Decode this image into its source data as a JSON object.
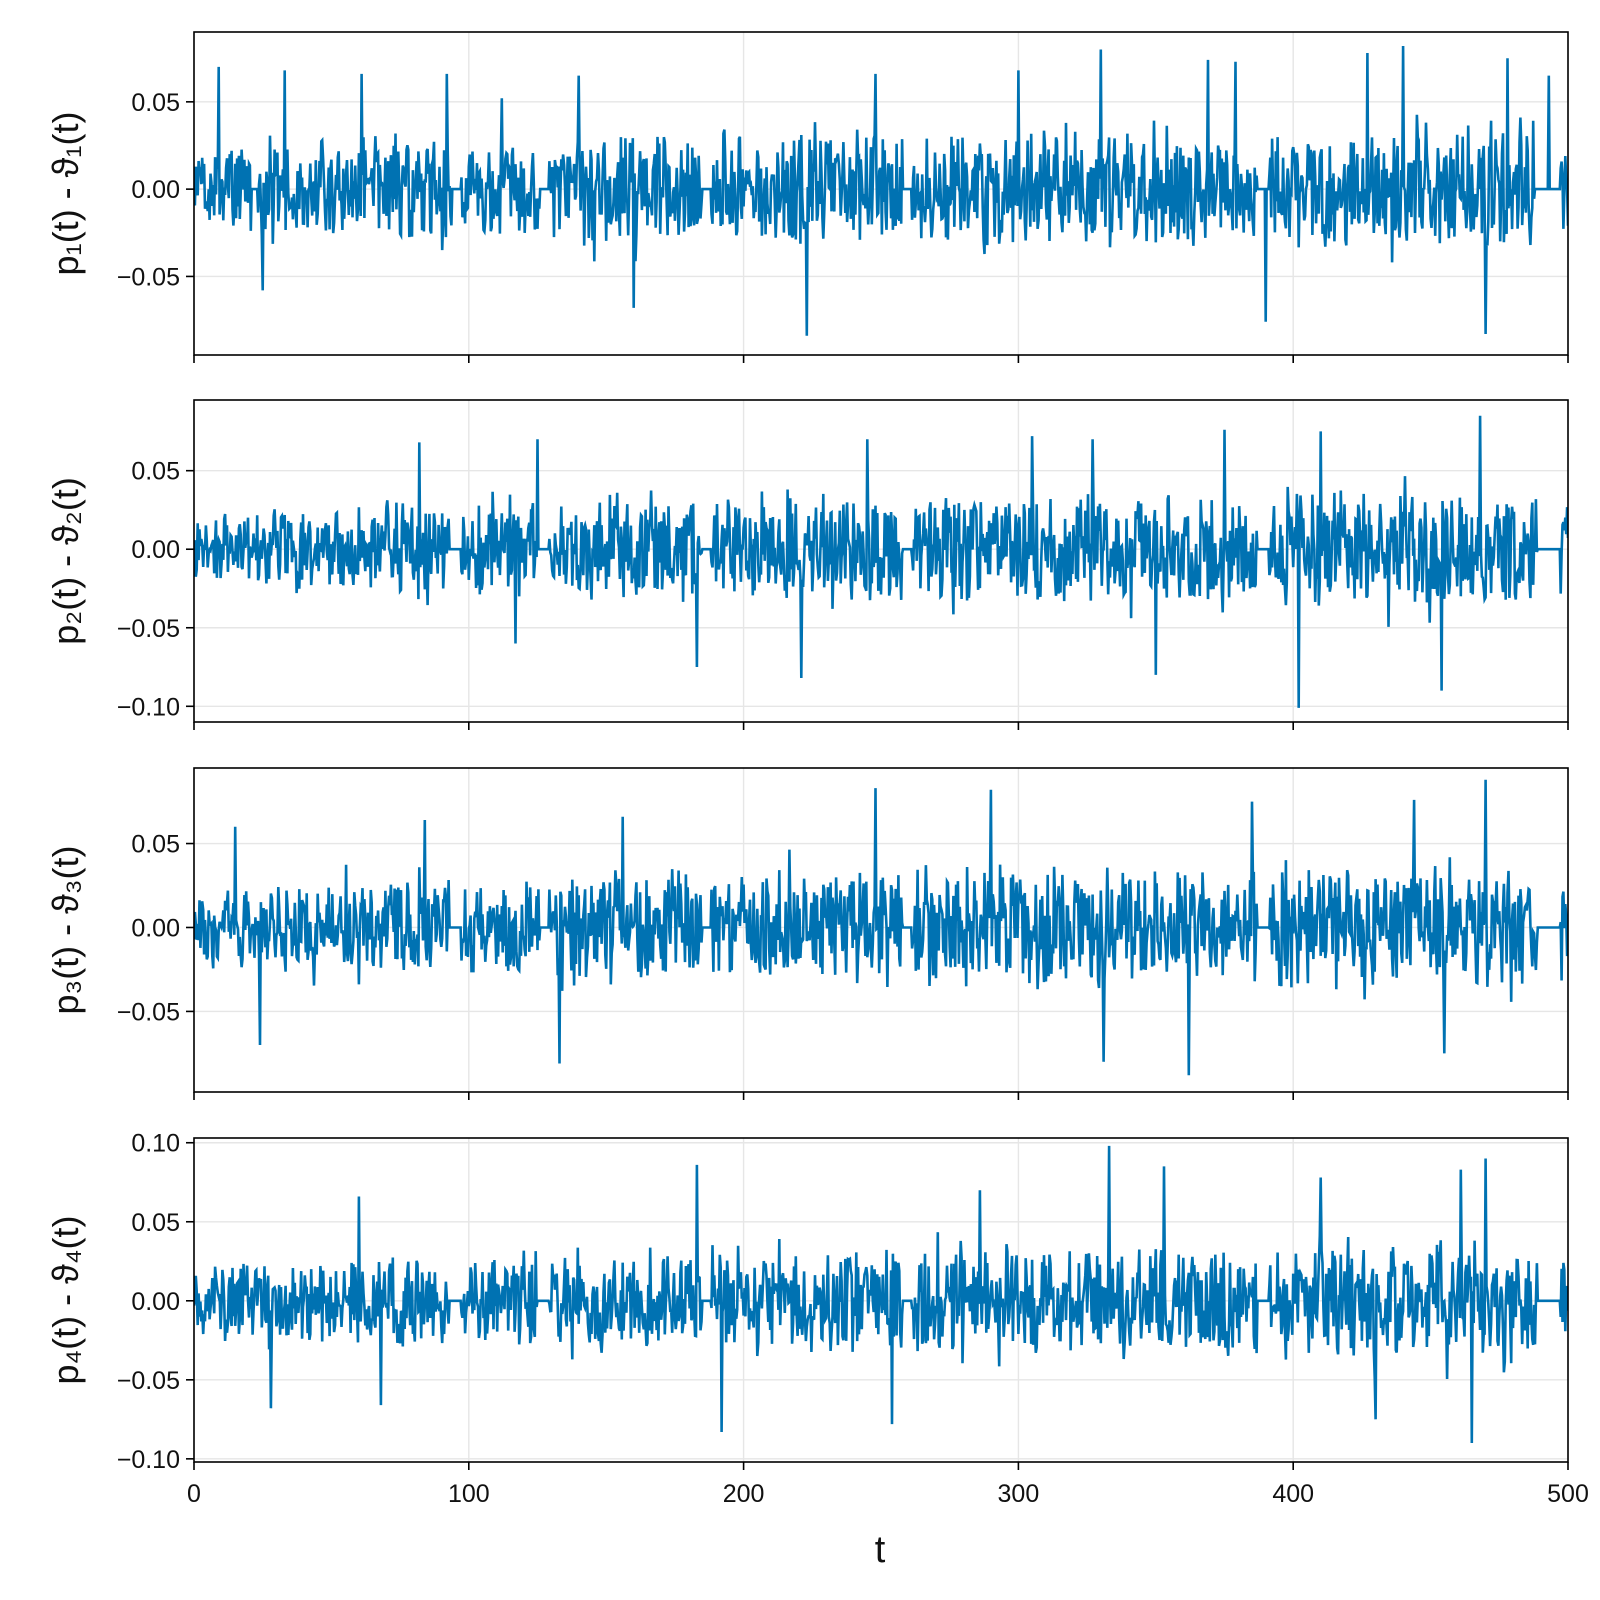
{
  "chart_data": [
    {
      "type": "line",
      "ylabel": "p₁(t) - ϑ₁(t)",
      "xlim": [
        0,
        500
      ],
      "ylim": [
        -0.095,
        0.09
      ],
      "xticks": [
        0,
        100,
        200,
        300,
        400,
        500
      ],
      "yticks": [
        -0.05,
        0.0,
        0.05
      ],
      "ytick_labels": [
        "−0.05",
        "0.00",
        "0.05"
      ],
      "xtick_labels_visible": false,
      "grid": true,
      "color": "#0072b2",
      "series": [
        {
          "envelope": [
            [
              0,
              -0.03,
              0.035
            ],
            [
              20,
              -0.035,
              0.04
            ],
            [
              60,
              -0.04,
              0.05
            ],
            [
              100,
              -0.04,
              0.045
            ],
            [
              150,
              -0.045,
              0.05
            ],
            [
              200,
              -0.045,
              0.05
            ],
            [
              250,
              -0.05,
              0.055
            ],
            [
              300,
              -0.05,
              0.055
            ],
            [
              350,
              -0.05,
              0.055
            ],
            [
              400,
              -0.05,
              0.055
            ],
            [
              450,
              -0.05,
              0.055
            ],
            [
              500,
              -0.05,
              0.055
            ]
          ],
          "peaks": [
            [
              9,
              0.07
            ],
            [
              25,
              -0.058
            ],
            [
              33,
              0.068
            ],
            [
              61,
              0.066
            ],
            [
              92,
              0.066
            ],
            [
              112,
              0.052
            ],
            [
              140,
              0.065
            ],
            [
              160,
              -0.068
            ],
            [
              223,
              -0.084
            ],
            [
              248,
              0.066
            ],
            [
              300,
              0.068
            ],
            [
              330,
              0.08
            ],
            [
              369,
              0.074
            ],
            [
              379,
              0.073
            ],
            [
              390,
              -0.076
            ],
            [
              427,
              0.078
            ],
            [
              440,
              0.082
            ],
            [
              470,
              -0.083
            ],
            [
              478,
              0.075
            ],
            [
              493,
              0.065
            ]
          ],
          "gaps": [
            [
              21,
              23
            ],
            [
              94,
              97
            ],
            [
              126,
              129
            ],
            [
              185,
              188
            ],
            [
              258,
              261
            ],
            [
              387,
              391
            ],
            [
              488,
              497
            ]
          ]
        }
      ]
    },
    {
      "type": "line",
      "ylabel": "p₂(t) - ϑ₂(t)",
      "xlim": [
        0,
        500
      ],
      "ylim": [
        -0.11,
        0.095
      ],
      "xticks": [
        0,
        100,
        200,
        300,
        400,
        500
      ],
      "yticks": [
        -0.1,
        -0.05,
        0.0,
        0.05
      ],
      "ytick_labels": [
        "−0.10",
        "−0.05",
        "0.00",
        "0.05"
      ],
      "xtick_labels_visible": false,
      "grid": true,
      "color": "#0072b2",
      "series": [
        {
          "envelope": [
            [
              0,
              -0.03,
              0.03
            ],
            [
              20,
              -0.035,
              0.04
            ],
            [
              60,
              -0.04,
              0.045
            ],
            [
              100,
              -0.04,
              0.05
            ],
            [
              150,
              -0.045,
              0.05
            ],
            [
              200,
              -0.045,
              0.05
            ],
            [
              250,
              -0.05,
              0.055
            ],
            [
              300,
              -0.05,
              0.055
            ],
            [
              350,
              -0.05,
              0.055
            ],
            [
              400,
              -0.05,
              0.06
            ],
            [
              450,
              -0.055,
              0.06
            ],
            [
              500,
              -0.055,
              0.06
            ]
          ],
          "peaks": [
            [
              82,
              0.068
            ],
            [
              117,
              -0.06
            ],
            [
              125,
              0.07
            ],
            [
              183,
              -0.075
            ],
            [
              221,
              -0.082
            ],
            [
              245,
              0.07
            ],
            [
              305,
              0.072
            ],
            [
              327,
              0.07
            ],
            [
              350,
              -0.08
            ],
            [
              402,
              -0.101
            ],
            [
              410,
              0.075
            ],
            [
              454,
              -0.09
            ],
            [
              468,
              0.085
            ],
            [
              375,
              0.076
            ]
          ],
          "gaps": [
            [
              93,
              97
            ],
            [
              125,
              129
            ],
            [
              185,
              188
            ],
            [
              258,
              261
            ],
            [
              387,
              391
            ],
            [
              489,
              497
            ]
          ]
        }
      ]
    },
    {
      "type": "line",
      "ylabel": "p₃(t) - ϑ₃(t)",
      "xlim": [
        0,
        500
      ],
      "ylim": [
        -0.098,
        0.095
      ],
      "xticks": [
        0,
        100,
        200,
        300,
        400,
        500
      ],
      "yticks": [
        -0.05,
        0.0,
        0.05
      ],
      "ytick_labels": [
        "−0.05",
        "0.00",
        "0.05"
      ],
      "xtick_labels_visible": false,
      "grid": true,
      "color": "#0072b2",
      "series": [
        {
          "envelope": [
            [
              0,
              -0.03,
              0.03
            ],
            [
              20,
              -0.035,
              0.04
            ],
            [
              60,
              -0.04,
              0.045
            ],
            [
              100,
              -0.04,
              0.045
            ],
            [
              150,
              -0.045,
              0.05
            ],
            [
              200,
              -0.045,
              0.05
            ],
            [
              250,
              -0.05,
              0.055
            ],
            [
              300,
              -0.05,
              0.055
            ],
            [
              350,
              -0.05,
              0.055
            ],
            [
              400,
              -0.05,
              0.06
            ],
            [
              450,
              -0.05,
              0.06
            ],
            [
              500,
              -0.055,
              0.06
            ]
          ],
          "peaks": [
            [
              15,
              0.06
            ],
            [
              24,
              -0.07
            ],
            [
              84,
              0.064
            ],
            [
              133,
              -0.081
            ],
            [
              156,
              0.066
            ],
            [
              248,
              0.083
            ],
            [
              290,
              0.082
            ],
            [
              331,
              -0.08
            ],
            [
              362,
              -0.088
            ],
            [
              385,
              0.075
            ],
            [
              444,
              0.076
            ],
            [
              470,
              0.088
            ],
            [
              455,
              -0.075
            ]
          ],
          "gaps": [
            [
              93,
              97
            ],
            [
              126,
              129
            ],
            [
              185,
              188
            ],
            [
              258,
              261
            ],
            [
              387,
              391
            ],
            [
              489,
              497
            ]
          ]
        }
      ]
    },
    {
      "type": "line",
      "ylabel": "p₄(t) - ϑ₄(t)",
      "xlabel": "t",
      "xlim": [
        0,
        500
      ],
      "ylim": [
        -0.102,
        0.103
      ],
      "xticks": [
        0,
        100,
        200,
        300,
        400,
        500
      ],
      "xtick_labels": [
        "0",
        "100",
        "200",
        "300",
        "400",
        "500"
      ],
      "yticks": [
        -0.1,
        -0.05,
        0.0,
        0.05,
        0.1
      ],
      "ytick_labels": [
        "−0.10",
        "−0.05",
        "0.00",
        "0.05",
        "0.10"
      ],
      "xtick_labels_visible": true,
      "grid": true,
      "color": "#0072b2",
      "series": [
        {
          "envelope": [
            [
              0,
              -0.035,
              0.035
            ],
            [
              20,
              -0.04,
              0.04
            ],
            [
              60,
              -0.04,
              0.045
            ],
            [
              100,
              -0.04,
              0.045
            ],
            [
              150,
              -0.045,
              0.05
            ],
            [
              200,
              -0.045,
              0.05
            ],
            [
              250,
              -0.05,
              0.055
            ],
            [
              300,
              -0.05,
              0.055
            ],
            [
              350,
              -0.05,
              0.055
            ],
            [
              400,
              -0.05,
              0.055
            ],
            [
              450,
              -0.055,
              0.06
            ],
            [
              500,
              -0.055,
              0.06
            ]
          ],
          "peaks": [
            [
              28,
              -0.068
            ],
            [
              60,
              0.066
            ],
            [
              68,
              -0.066
            ],
            [
              183,
              0.086
            ],
            [
              192,
              -0.083
            ],
            [
              254,
              -0.078
            ],
            [
              286,
              0.07
            ],
            [
              333,
              0.098
            ],
            [
              353,
              0.085
            ],
            [
              410,
              0.078
            ],
            [
              430,
              -0.075
            ],
            [
              461,
              0.083
            ],
            [
              465,
              -0.09
            ],
            [
              470,
              0.09
            ]
          ],
          "gaps": [
            [
              93,
              97
            ],
            [
              125,
              129
            ],
            [
              185,
              188
            ],
            [
              258,
              261
            ],
            [
              387,
              391
            ],
            [
              489,
              497
            ]
          ]
        }
      ]
    }
  ]
}
